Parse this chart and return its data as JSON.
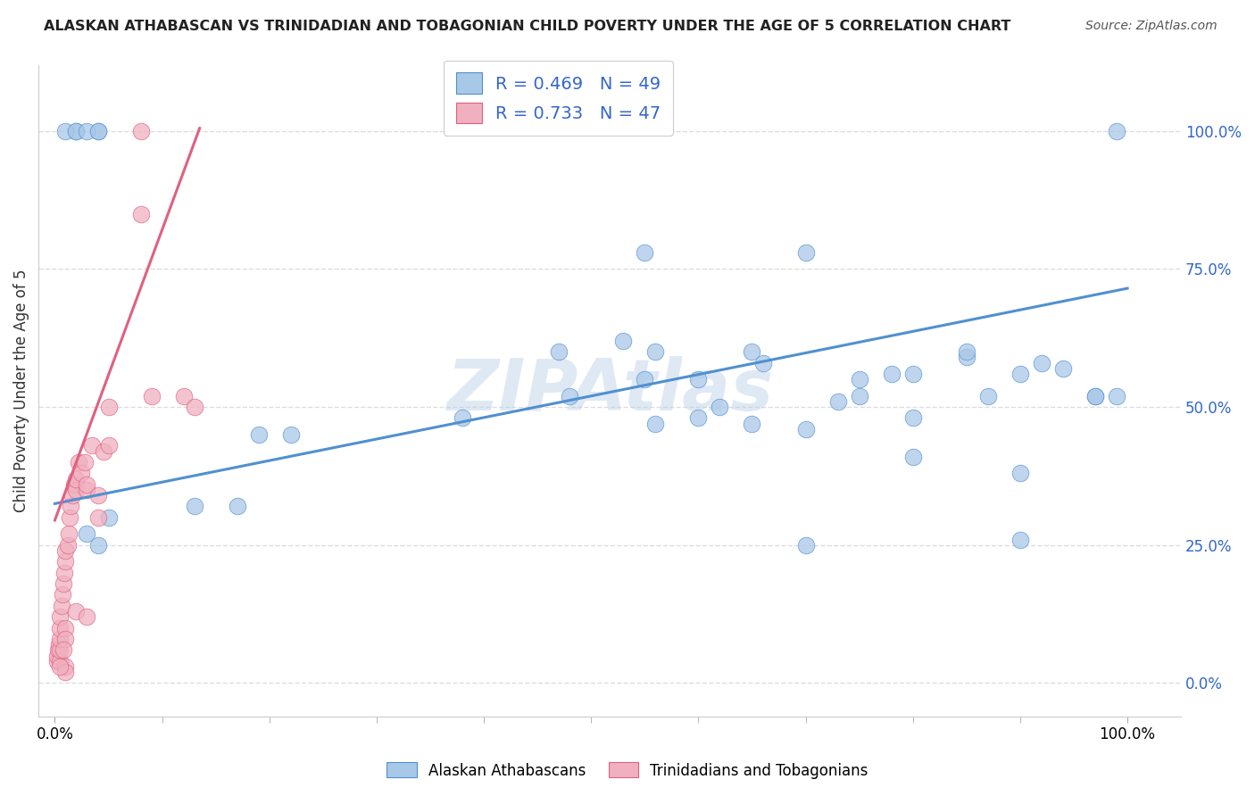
{
  "title": "ALASKAN ATHABASCAN VS TRINIDADIAN AND TOBAGONIAN CHILD POVERTY UNDER THE AGE OF 5 CORRELATION CHART",
  "source": "Source: ZipAtlas.com",
  "ylabel": "Child Poverty Under the Age of 5",
  "blue_R": 0.469,
  "blue_N": 49,
  "pink_R": 0.733,
  "pink_N": 47,
  "blue_color": "#a8c8e8",
  "pink_color": "#f0b0c0",
  "blue_line_color": "#5090d0",
  "pink_line_color": "#e06080",
  "watermark": "ZIPAtlas",
  "blue_scatter_x": [
    0.02,
    0.04,
    0.01,
    0.02,
    0.03,
    0.04,
    0.03,
    0.04,
    0.05,
    0.13,
    0.17,
    0.19,
    0.22,
    0.38,
    0.47,
    0.48,
    0.53,
    0.55,
    0.55,
    0.56,
    0.6,
    0.62,
    0.65,
    0.66,
    0.7,
    0.7,
    0.73,
    0.75,
    0.78,
    0.8,
    0.8,
    0.85,
    0.85,
    0.87,
    0.9,
    0.9,
    0.92,
    0.94,
    0.97,
    0.99,
    0.56,
    0.6,
    0.65,
    0.7,
    0.75,
    0.8,
    0.9,
    0.97,
    0.99
  ],
  "blue_scatter_y": [
    1.0,
    1.0,
    1.0,
    1.0,
    1.0,
    1.0,
    0.27,
    0.25,
    0.3,
    0.32,
    0.32,
    0.45,
    0.45,
    0.48,
    0.6,
    0.52,
    0.62,
    0.55,
    0.78,
    0.6,
    0.55,
    0.5,
    0.6,
    0.58,
    0.25,
    0.78,
    0.51,
    0.55,
    0.56,
    0.56,
    0.41,
    0.59,
    0.6,
    0.52,
    0.38,
    0.56,
    0.58,
    0.57,
    0.52,
    1.0,
    0.47,
    0.48,
    0.47,
    0.46,
    0.52,
    0.48,
    0.26,
    0.52,
    0.52
  ],
  "pink_scatter_x": [
    0.002,
    0.002,
    0.003,
    0.004,
    0.005,
    0.005,
    0.005,
    0.005,
    0.005,
    0.006,
    0.007,
    0.008,
    0.009,
    0.01,
    0.01,
    0.01,
    0.01,
    0.012,
    0.013,
    0.014,
    0.015,
    0.016,
    0.018,
    0.02,
    0.02,
    0.02,
    0.022,
    0.025,
    0.028,
    0.03,
    0.03,
    0.03,
    0.035,
    0.04,
    0.04,
    0.045,
    0.05,
    0.05,
    0.08,
    0.08,
    0.09,
    0.12,
    0.13,
    0.01,
    0.01,
    0.005,
    0.008
  ],
  "pink_scatter_y": [
    0.04,
    0.05,
    0.06,
    0.07,
    0.04,
    0.06,
    0.08,
    0.1,
    0.12,
    0.14,
    0.16,
    0.18,
    0.2,
    0.22,
    0.24,
    0.1,
    0.08,
    0.25,
    0.27,
    0.3,
    0.32,
    0.34,
    0.36,
    0.13,
    0.35,
    0.37,
    0.4,
    0.38,
    0.4,
    0.35,
    0.36,
    0.12,
    0.43,
    0.3,
    0.34,
    0.42,
    0.43,
    0.5,
    1.0,
    0.85,
    0.52,
    0.52,
    0.5,
    0.03,
    0.02,
    0.03,
    0.06
  ],
  "blue_trend_x": [
    0.0,
    1.0
  ],
  "blue_trend_y": [
    0.325,
    0.715
  ],
  "pink_trend_x": [
    0.0,
    0.135
  ],
  "pink_trend_y": [
    0.295,
    1.005
  ],
  "legend_label_blue": "Alaskan Athabascans",
  "legend_label_pink": "Trinidadians and Tobagonians",
  "background_color": "#ffffff",
  "grid_color": "#dddddd",
  "ytick_labels": [
    "0.0%",
    "25.0%",
    "50.0%",
    "75.0%",
    "100.0%"
  ],
  "ytick_values": [
    0.0,
    0.25,
    0.5,
    0.75,
    1.0
  ],
  "xtick_labels": [
    "0.0%",
    "100.0%"
  ],
  "xtick_values": [
    0.0,
    1.0
  ],
  "xlim": [
    -0.015,
    1.05
  ],
  "ylim": [
    -0.06,
    1.12
  ]
}
